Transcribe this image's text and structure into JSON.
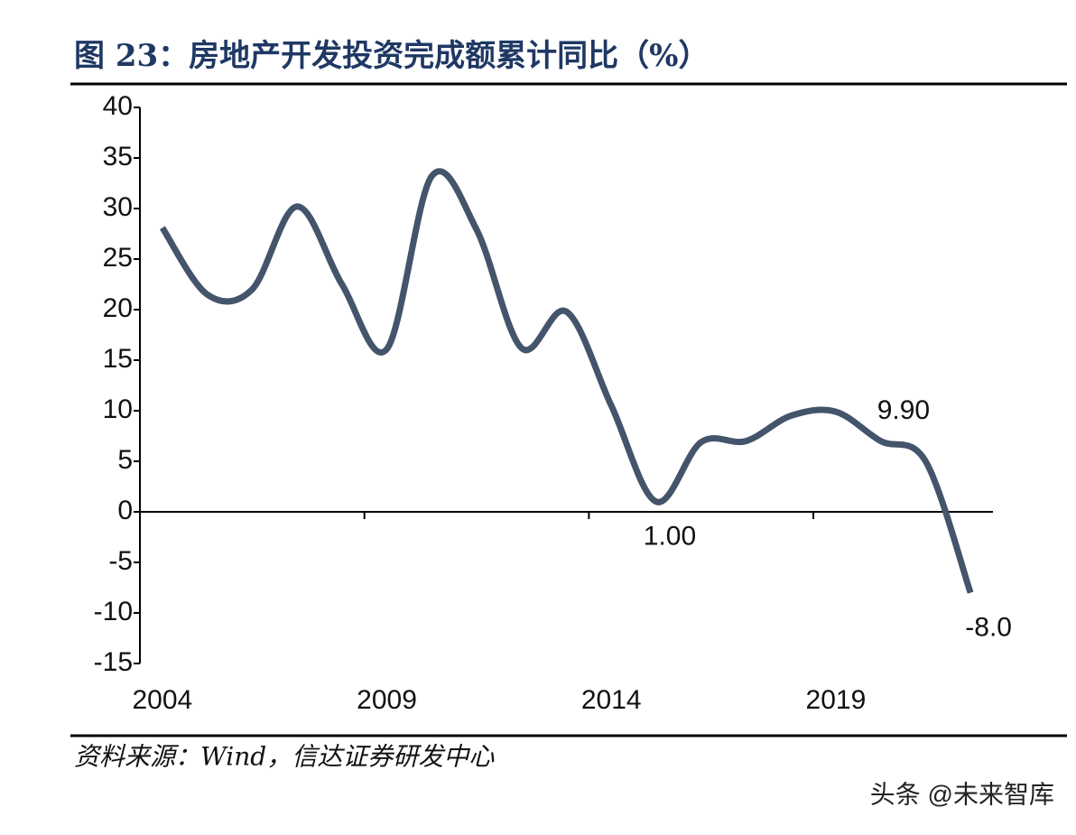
{
  "chart_data": {
    "type": "line",
    "title": "图 23：房地产开发投资完成额累计同比（%）",
    "source": "资料来源：Wind，信达证券研发中心",
    "watermark": "头条 @未来智库",
    "categories": [
      "2004",
      null,
      null,
      null,
      null,
      "2009",
      null,
      null,
      null,
      null,
      "2014",
      null,
      null,
      null,
      null,
      "2019",
      null,
      null,
      null
    ],
    "series": [
      {
        "name": "房地产开发投资完成额累计同比",
        "color": "#44546a",
        "values": [
          28.1,
          21.5,
          22.0,
          30.2,
          22.5,
          16.1,
          33.2,
          27.9,
          16.2,
          19.8,
          10.5,
          1.0,
          6.9,
          7.0,
          9.5,
          9.9,
          7.0,
          5.0,
          -8.0
        ],
        "value_labels": [
          null,
          null,
          null,
          null,
          null,
          null,
          null,
          null,
          null,
          null,
          null,
          "1.00",
          null,
          null,
          null,
          "9.90",
          null,
          null,
          "-8.0"
        ]
      }
    ],
    "ylim": [
      -15,
      40
    ],
    "yticks": [
      -15,
      -10,
      -5,
      0,
      5,
      10,
      15,
      20,
      25,
      30,
      35,
      40
    ]
  }
}
